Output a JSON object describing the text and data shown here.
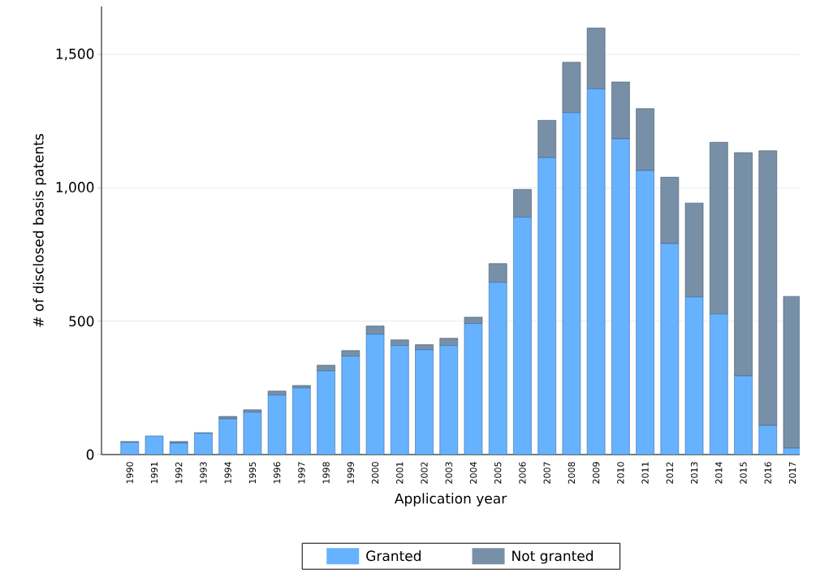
{
  "chart_data": {
    "type": "bar",
    "stacked": true,
    "xlabel": "Application year",
    "ylabel": "# of disclosed basis patents",
    "categories": [
      "1990",
      "1991",
      "1992",
      "1993",
      "1994",
      "1995",
      "1996",
      "1997",
      "1998",
      "1999",
      "2000",
      "2001",
      "2002",
      "2003",
      "2004",
      "2005",
      "2006",
      "2007",
      "2008",
      "2009",
      "2010",
      "2011",
      "2012",
      "2013",
      "2014",
      "2015",
      "2016",
      "2017"
    ],
    "series": [
      {
        "name": "Granted",
        "color": "#66b2ff",
        "values": [
          46,
          70,
          43,
          80,
          134,
          159,
          223,
          250,
          314,
          369,
          451,
          409,
          393,
          409,
          491,
          646,
          890,
          1113,
          1282,
          1371,
          1184,
          1065,
          791,
          591,
          527,
          295,
          109,
          24
        ]
      },
      {
        "name": "Not granted",
        "color": "#7790a8",
        "values": [
          3,
          0,
          6,
          2,
          9,
          9,
          15,
          9,
          21,
          21,
          31,
          21,
          19,
          27,
          24,
          70,
          104,
          140,
          189,
          228,
          213,
          232,
          249,
          352,
          644,
          837,
          1030,
          569
        ]
      }
    ],
    "ylim": [
      0,
      1680
    ],
    "yticks": [
      0,
      500,
      {
        "value": 1000,
        "label": "1,000"
      },
      {
        "value": 1500,
        "label": "1,500"
      }
    ],
    "grid": "y",
    "legend": "bottom"
  }
}
